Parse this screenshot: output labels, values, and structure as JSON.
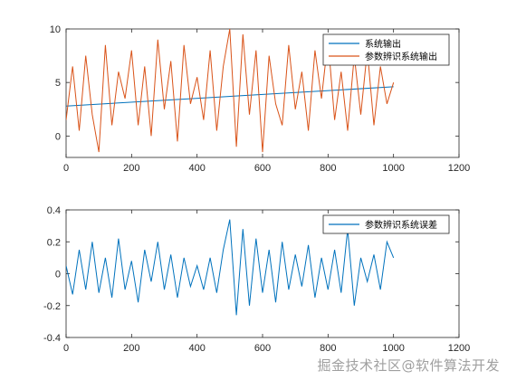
{
  "watermark": "掘金技术社区@软件算法开发",
  "colors": {
    "series_blue": "#0072BD",
    "series_orange": "#D95319",
    "axes": "#262626",
    "background": "#ffffff"
  },
  "chart_data": [
    {
      "type": "line",
      "title": "",
      "xlabel": "",
      "ylabel": "",
      "xlim": [
        0,
        1200
      ],
      "ylim": [
        -2,
        10
      ],
      "xticks": [
        0,
        200,
        400,
        600,
        800,
        1000,
        1200
      ],
      "yticks": [
        0,
        5,
        10
      ],
      "grid": false,
      "legend_position": "top-right",
      "series": [
        {
          "name": "系统输出",
          "color": "#0072BD",
          "x": [
            0,
            1000
          ],
          "values": [
            2.8,
            4.6
          ],
          "note_visible_trace_hidden_behind_orange": true
        },
        {
          "name": "参数辨识系统输出",
          "color": "#D95319",
          "x": [
            0,
            20,
            40,
            60,
            80,
            100,
            120,
            140,
            160,
            180,
            200,
            220,
            240,
            260,
            280,
            300,
            320,
            340,
            360,
            380,
            400,
            420,
            440,
            460,
            480,
            500,
            520,
            540,
            560,
            580,
            600,
            620,
            640,
            660,
            680,
            700,
            720,
            740,
            760,
            780,
            800,
            820,
            840,
            860,
            880,
            900,
            920,
            940,
            960,
            980,
            1000
          ],
          "values": [
            1.5,
            6.5,
            0.5,
            7.5,
            2.0,
            -1.5,
            8.5,
            1.0,
            6.0,
            3.5,
            8.0,
            1.0,
            6.5,
            0.0,
            9.0,
            2.5,
            7.0,
            -0.5,
            8.5,
            3.0,
            5.5,
            1.5,
            8.0,
            0.5,
            6.5,
            10.0,
            -1.0,
            9.5,
            2.0,
            8.0,
            -1.5,
            7.5,
            3.0,
            1.0,
            8.5,
            2.5,
            6.0,
            0.5,
            8.0,
            3.5,
            9.0,
            1.5,
            6.0,
            0.5,
            7.5,
            2.0,
            8.0,
            1.0,
            6.5,
            3.0,
            5.0
          ]
        }
      ]
    },
    {
      "type": "line",
      "title": "",
      "xlabel": "",
      "ylabel": "",
      "xlim": [
        0,
        1200
      ],
      "ylim": [
        -0.4,
        0.4
      ],
      "xticks": [
        0,
        200,
        400,
        600,
        800,
        1000,
        1200
      ],
      "yticks": [
        -0.4,
        -0.2,
        0,
        0.2,
        0.4
      ],
      "grid": false,
      "legend_position": "top-right",
      "series": [
        {
          "name": "参数辨识系统误差",
          "color": "#0072BD",
          "x": [
            0,
            20,
            40,
            60,
            80,
            100,
            120,
            140,
            160,
            180,
            200,
            220,
            240,
            260,
            280,
            300,
            320,
            340,
            360,
            380,
            400,
            420,
            440,
            460,
            480,
            500,
            520,
            540,
            560,
            580,
            600,
            620,
            640,
            660,
            680,
            700,
            720,
            740,
            760,
            780,
            800,
            820,
            840,
            860,
            880,
            900,
            920,
            940,
            960,
            980,
            1000
          ],
          "values": [
            0.05,
            -0.13,
            0.15,
            -0.1,
            0.2,
            -0.12,
            0.1,
            -0.15,
            0.22,
            -0.1,
            0.08,
            -0.18,
            0.15,
            -0.05,
            0.2,
            -0.1,
            0.12,
            -0.15,
            0.1,
            -0.08,
            0.05,
            -0.1,
            0.1,
            -0.12,
            0.15,
            0.34,
            -0.26,
            0.28,
            -0.2,
            0.22,
            -0.12,
            0.15,
            -0.18,
            0.2,
            -0.1,
            0.12,
            -0.08,
            0.18,
            -0.15,
            0.1,
            -0.1,
            0.15,
            -0.12,
            0.28,
            -0.2,
            0.1,
            -0.05,
            0.12,
            -0.1,
            0.2,
            0.1
          ]
        }
      ]
    }
  ]
}
